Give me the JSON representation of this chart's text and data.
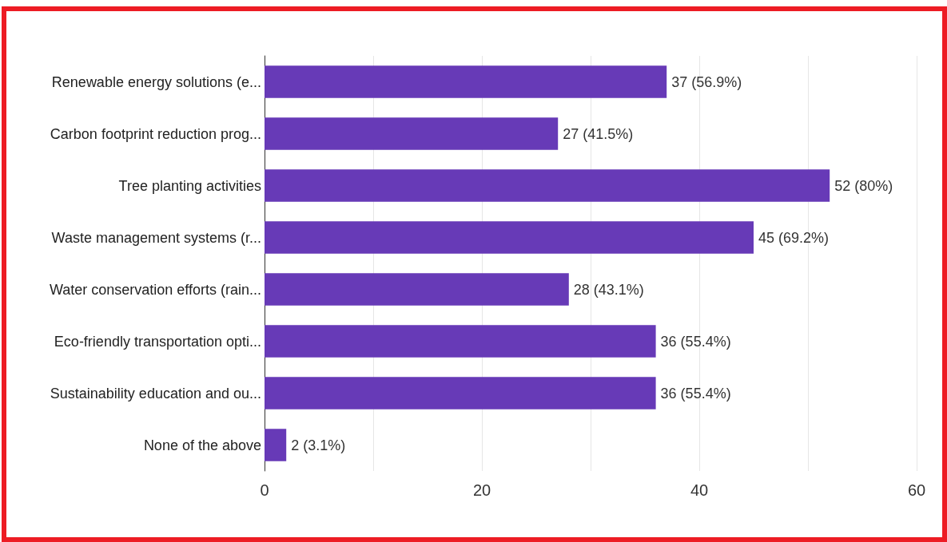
{
  "chart_data": {
    "type": "bar",
    "orientation": "horizontal",
    "categories": [
      "Renewable energy solutions (e...",
      "Carbon footprint reduction prog...",
      "Tree planting activities",
      "Waste management systems (r...",
      "Water conservation efforts (rain...",
      "Eco-friendly transportation opti...",
      "Sustainability education and ou...",
      "None of the above"
    ],
    "values": [
      37,
      27,
      52,
      45,
      28,
      36,
      36,
      2
    ],
    "value_labels": [
      "37 (56.9%)",
      "27 (41.5%)",
      "52 (80%)",
      "45 (69.2%)",
      "28 (43.1%)",
      "36 (55.4%)",
      "36 (55.4%)",
      "2 (3.1%)"
    ],
    "color": "#673ab7",
    "xlim": [
      0,
      60
    ],
    "xticks": [
      0,
      {
        "value": 10,
        "label": null
      },
      20,
      {
        "value": 30,
        "label": null
      },
      40,
      {
        "value": 50,
        "label": null
      },
      60
    ],
    "grid": "x"
  }
}
